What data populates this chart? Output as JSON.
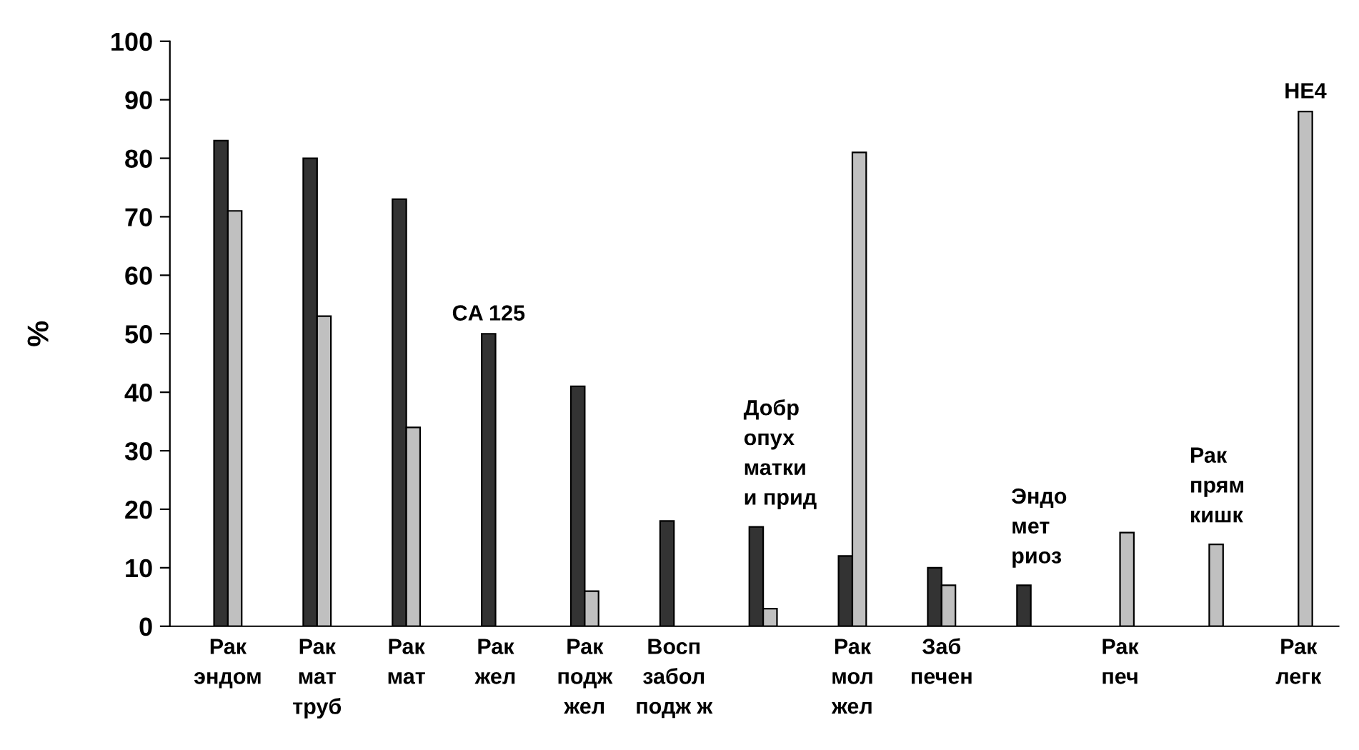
{
  "chart_data": {
    "type": "bar",
    "ylabel": "%",
    "categories": [
      "Рак\nэндом",
      "Рак\nмат\nтруб",
      "Рак\nмат",
      "Рак\nжел",
      "Рак\nподж\nжел",
      "Восп\nзабол\nподж ж",
      "Добр\nопух\nматки\nи прид",
      "Рак\nмол\nжел",
      "Заб\nпечен",
      "Эндо\nмет\nриоз",
      "Рак\nпеч",
      "Рак\nпрям\nкишк",
      "Рак\nлегк"
    ],
    "series": [
      {
        "name": "CA 125",
        "color": "#333333",
        "values": [
          83,
          80,
          73,
          50,
          41,
          18,
          17,
          12,
          10,
          7,
          null,
          null,
          null
        ]
      },
      {
        "name": "HE4",
        "color": "#c0c0c0",
        "values": [
          71,
          53,
          34,
          null,
          6,
          null,
          3,
          81,
          7,
          null,
          16,
          14,
          88
        ]
      }
    ],
    "ylim": [
      0,
      100
    ],
    "yticks": [
      0,
      10,
      20,
      30,
      40,
      50,
      60,
      70,
      80,
      90,
      100
    ],
    "grid": false,
    "legend": false
  }
}
